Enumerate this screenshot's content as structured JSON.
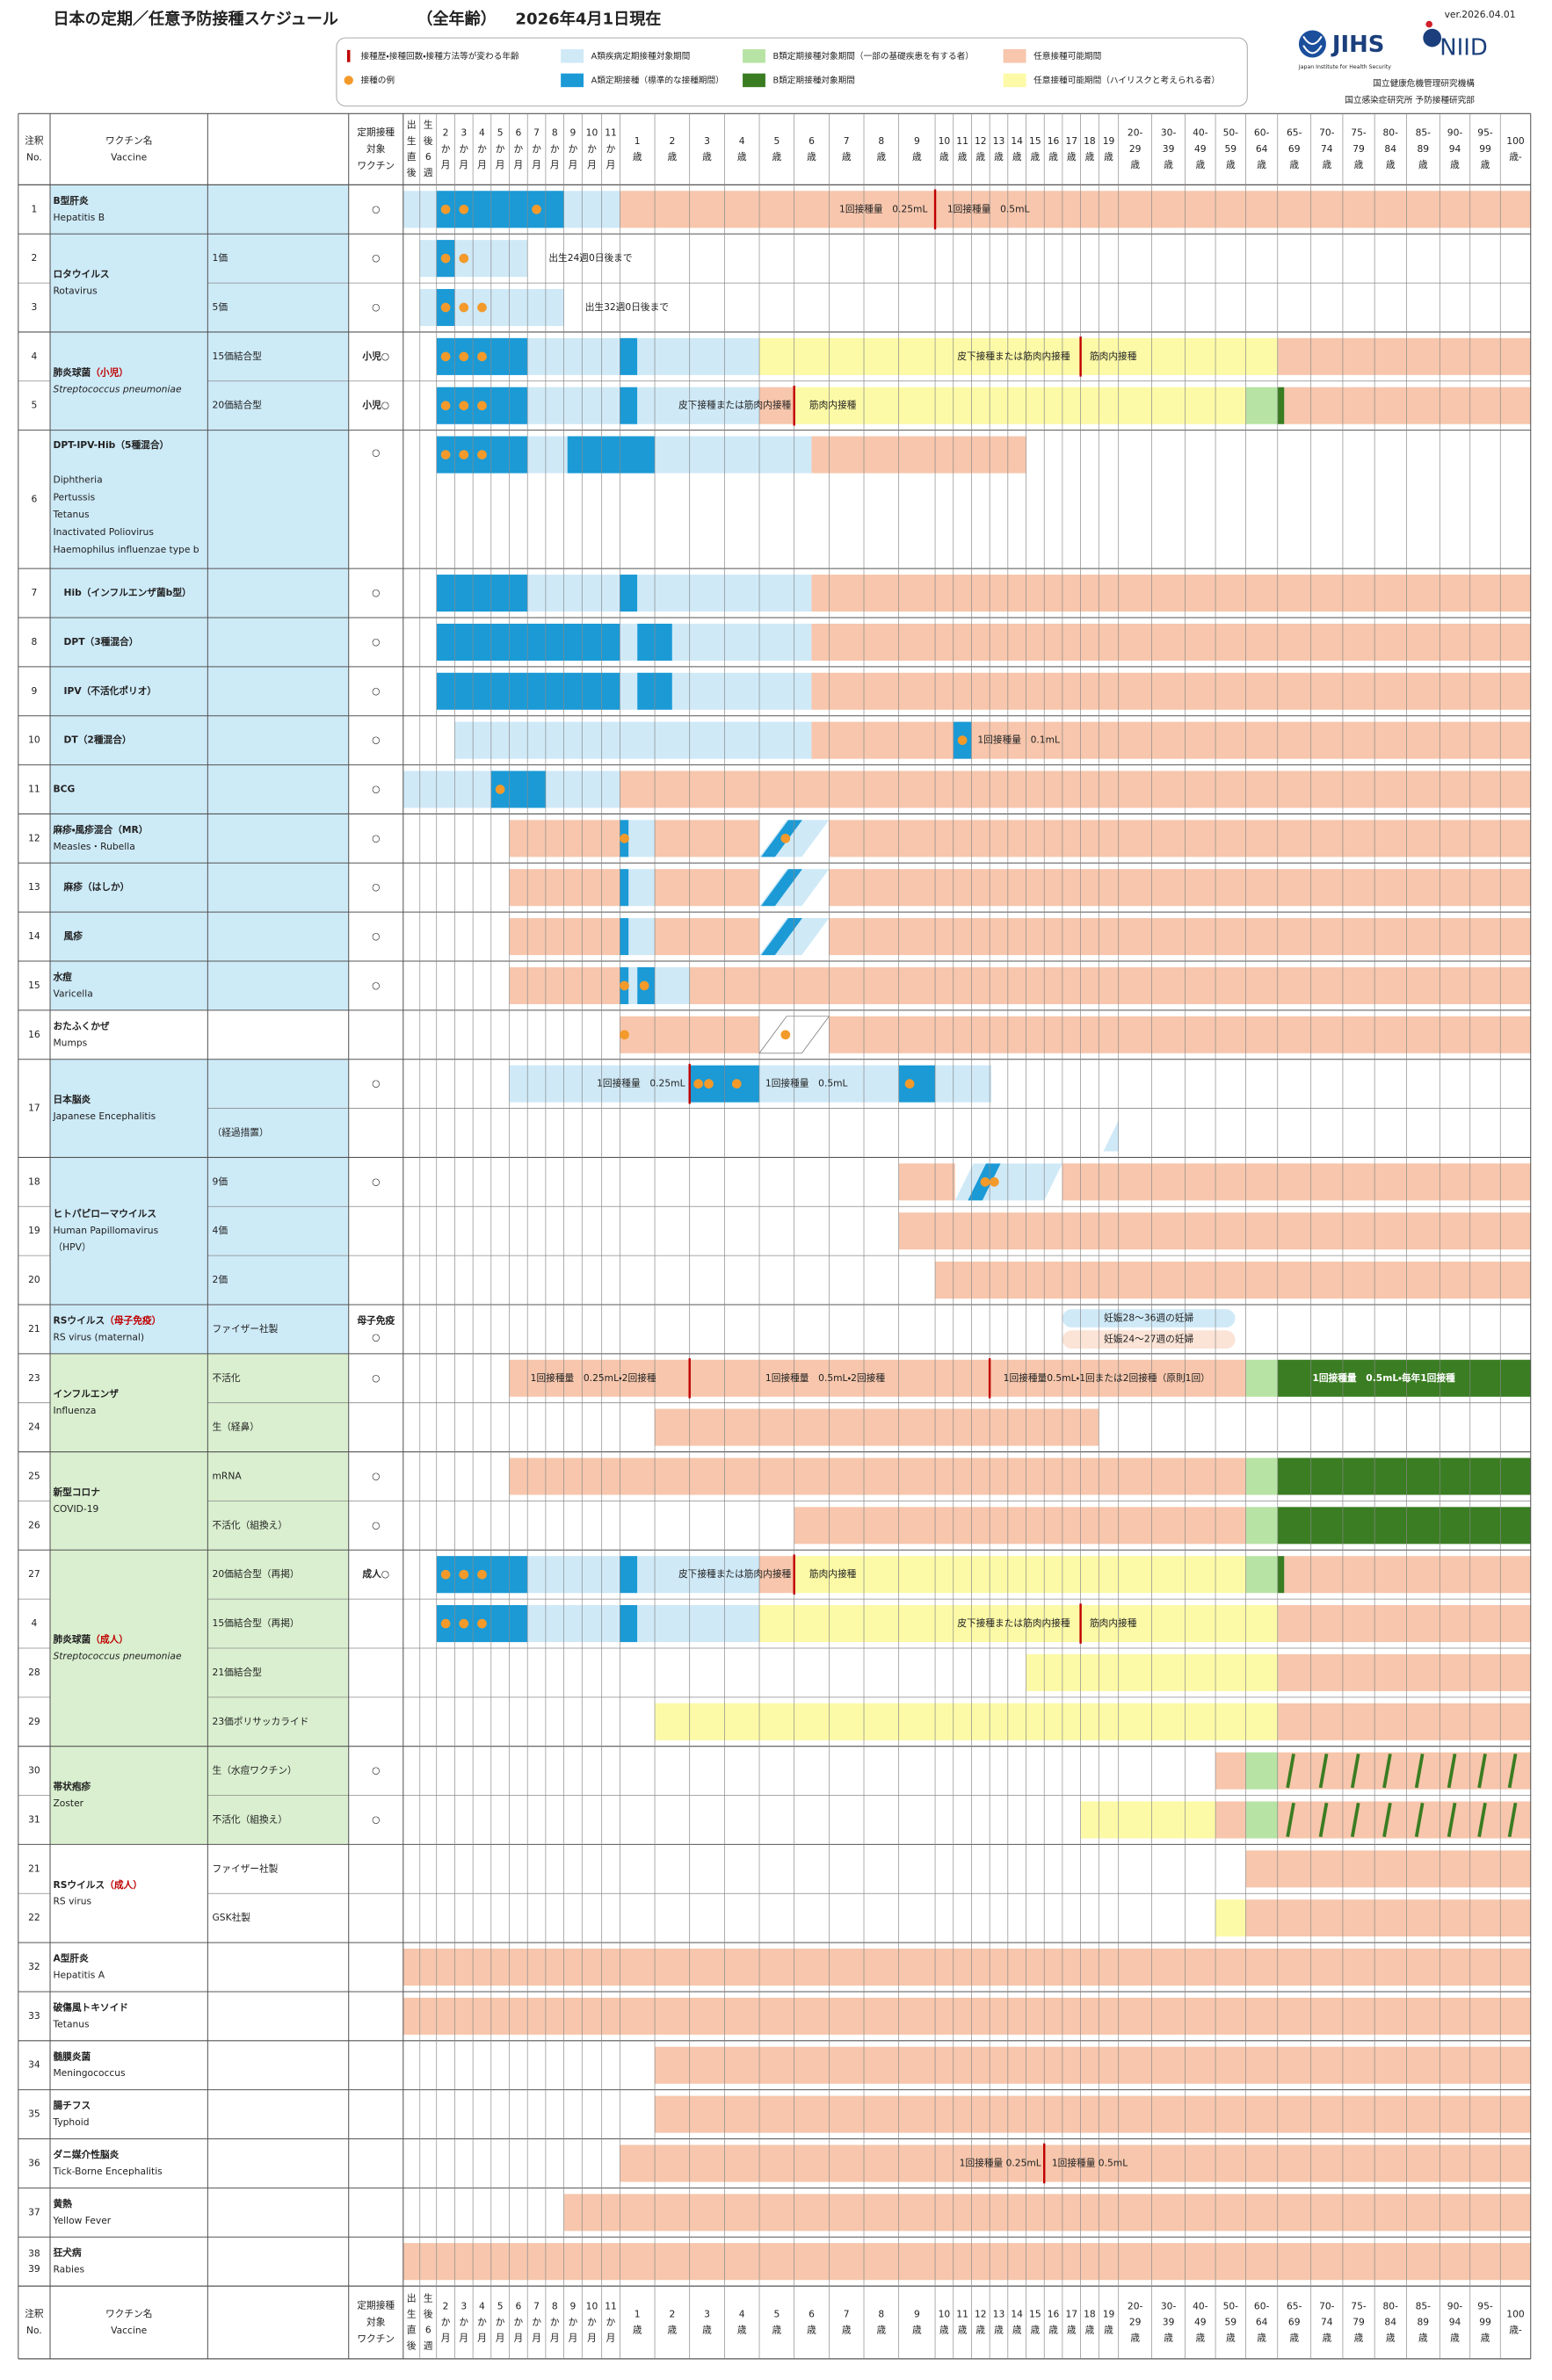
{
  "header": {
    "title": "日本の定期／任意予防接種スケジュール",
    "scope": "（全年齢）",
    "date": "2026年4月1日現在",
    "version": "ver.2026.04.01",
    "logo1": "JIHS",
    "logo1_sub": "Japan Institute for Health Security",
    "logo2": "NIID",
    "org_lines": [
      "国立健康危機管理研究機構",
      "国立感染症研究所 予防接種研究部"
    ]
  },
  "legend": [
    "接種歴・接種回数・接種方法等が変わる年齢",
    "接種の例",
    "A類疾病定期接種対象期間",
    "A類定期接種（標準的な接種期間）",
    "B類定期接種対象期間（一部の基礎疾患を有する者）",
    "B類定期接種対象期間",
    "任意接種可能期間",
    "任意接種可能期間（ハイリスクと考えられる者）"
  ],
  "table": {
    "headers": {
      "no": [
        "注釈",
        "No."
      ],
      "name": [
        "ワクチン名",
        "Vaccine"
      ],
      "target": [
        "定期接種",
        "対象",
        "ワクチン"
      ]
    },
    "columns": [
      [
        "出",
        "生",
        "直",
        "後"
      ],
      [
        "生",
        "後",
        "6",
        "週"
      ],
      [
        "2",
        "か",
        "月"
      ],
      [
        "3",
        "か",
        "月"
      ],
      [
        "4",
        "か",
        "月"
      ],
      [
        "5",
        "か",
        "月"
      ],
      [
        "6",
        "か",
        "月"
      ],
      [
        "7",
        "か",
        "月"
      ],
      [
        "8",
        "か",
        "月"
      ],
      [
        "9",
        "か",
        "月"
      ],
      [
        "10",
        "か",
        "月"
      ],
      [
        "11",
        "か",
        "月"
      ],
      [
        "1",
        "歳"
      ],
      [
        "2",
        "歳"
      ],
      [
        "3",
        "歳"
      ],
      [
        "4",
        "歳"
      ],
      [
        "5",
        "歳"
      ],
      [
        "6",
        "歳"
      ],
      [
        "7",
        "歳"
      ],
      [
        "8",
        "歳"
      ],
      [
        "9",
        "歳"
      ],
      [
        "10",
        "歳"
      ],
      [
        "11",
        "歳"
      ],
      [
        "12",
        "歳"
      ],
      [
        "13",
        "歳"
      ],
      [
        "14",
        "歳"
      ],
      [
        "15",
        "歳"
      ],
      [
        "16",
        "歳"
      ],
      [
        "17",
        "歳"
      ],
      [
        "18",
        "歳"
      ],
      [
        "19",
        "歳"
      ],
      [
        "20-",
        "29",
        "歳"
      ],
      [
        "30-",
        "39",
        "歳"
      ],
      [
        "40-",
        "49",
        "歳"
      ],
      [
        "50-",
        "59",
        "歳"
      ],
      [
        "60-",
        "64",
        "歳"
      ],
      [
        "65-",
        "69",
        "歳"
      ],
      [
        "70-",
        "74",
        "歳"
      ],
      [
        "75-",
        "79",
        "歳"
      ],
      [
        "80-",
        "84",
        "歳"
      ],
      [
        "85-",
        "89",
        "歳"
      ],
      [
        "90-",
        "94",
        "歳"
      ],
      [
        "95-",
        "99",
        "歳"
      ],
      [
        "100",
        "歳-"
      ]
    ],
    "groups": [
      {
        "name": "B型肝炎",
        "en": [
          "Hepatitis B"
        ],
        "rows": [
          {
            "no": "1",
            "target": "○",
            "notes": [
              "1回接種量　0.25mL",
              "1回接種量　0.5mL"
            ]
          }
        ]
      },
      {
        "name": "ロタウイルス",
        "en": [
          "Rotavirus"
        ],
        "rows": [
          {
            "no": "2",
            "sub": "1価",
            "target": "○",
            "notes": [
              "出生24週0日後まで"
            ]
          },
          {
            "no": "3",
            "sub": "5価",
            "target": "○",
            "notes": [
              "出生32週0日後まで"
            ]
          }
        ]
      },
      {
        "name": "肺炎球菌",
        "note": "（小児）",
        "en": [
          "Streptococcus pneumoniae"
        ],
        "rows": [
          {
            "no": "4",
            "sub": "15価結合型",
            "target": "小児○",
            "notes": [
              "皮下接種または筋肉内接種",
              "筋肉内接種"
            ]
          },
          {
            "no": "5",
            "sub": "20価結合型",
            "target": "小児○",
            "notes": [
              "皮下接種または筋肉内接種",
              "筋肉内接種"
            ]
          }
        ]
      },
      {
        "name": "DPT-IPV-Hib（5種混合）",
        "en": [
          "Diphtheria",
          "Pertussis",
          "Tetanus",
          "Inactivated Poliovirus",
          "Haemophilus influenzae type b"
        ],
        "rows": [
          {
            "no": "6",
            "target": "○"
          }
        ]
      },
      {
        "name": "Hib（インフルエンザ菌b型）",
        "rows": [
          {
            "no": "7",
            "target": "○"
          }
        ]
      },
      {
        "name": "DPT（3種混合）",
        "rows": [
          {
            "no": "8",
            "target": "○"
          }
        ]
      },
      {
        "name": "IPV（不活化ポリオ）",
        "rows": [
          {
            "no": "9",
            "target": "○"
          }
        ]
      },
      {
        "name": "DT（2種混合）",
        "rows": [
          {
            "no": "10",
            "target": "○",
            "notes": [
              "1回接種量　0.1mL"
            ]
          }
        ]
      },
      {
        "name": "BCG",
        "rows": [
          {
            "no": "11",
            "target": "○"
          }
        ]
      },
      {
        "name": "麻疹・風疹混合（MR）",
        "en": [
          "Measles・Rubella"
        ],
        "rows": [
          {
            "no": "12",
            "target": "○"
          }
        ]
      },
      {
        "name": "麻疹（はしか）",
        "rows": [
          {
            "no": "13",
            "target": "○"
          }
        ]
      },
      {
        "name": "風疹",
        "rows": [
          {
            "no": "14",
            "target": "○"
          }
        ]
      },
      {
        "name": "水痘",
        "en": [
          "Varicella"
        ],
        "rows": [
          {
            "no": "15",
            "target": "○"
          }
        ]
      },
      {
        "name": "おたふくかぜ",
        "en": [
          "Mumps"
        ],
        "rows": [
          {
            "no": "16"
          }
        ]
      },
      {
        "name": "日本脳炎",
        "en": [
          "Japanese Encephalitis"
        ],
        "rows": [
          {
            "no": "17",
            "target": "○",
            "notes": [
              "1回接種量　0.25mL",
              "1回接種量　0.5mL"
            ]
          },
          {
            "sub": "（経過措置）"
          }
        ]
      },
      {
        "name": "ヒトパピローマウイルス",
        "en": [
          "Human Papillomavirus",
          "（HPV）"
        ],
        "rows": [
          {
            "no": "18",
            "sub": "9価",
            "target": "○"
          },
          {
            "no": "19",
            "sub": "4価"
          },
          {
            "no": "20",
            "sub": "2価"
          }
        ]
      },
      {
        "name": "RSウイルス",
        "note": "（母子免疫）",
        "en": [
          "RS virus (maternal)"
        ],
        "rows": [
          {
            "no": "21",
            "sub": "ファイザー社製",
            "target": [
              "母子免疫",
              "○"
            ],
            "notes": [
              "妊娠28～36週の妊婦",
              "妊娠24～27週の妊婦"
            ]
          }
        ]
      },
      {
        "name": "インフルエンザ",
        "en": [
          "Influenza"
        ],
        "rows": [
          {
            "no": "23",
            "sub": "不活化",
            "target": "○",
            "notes": [
              "1回接種量　0.25mL・2回接種",
              "1回接種量　0.5mL・2回接種",
              "1回接種量0.5mL・1回または2回接種（原則1回）",
              "1回接種量　0.5mL・毎年1回接種"
            ]
          },
          {
            "no": "24",
            "sub": "生（経鼻）"
          }
        ]
      },
      {
        "name": "新型コロナ",
        "en": [
          "COVID-19"
        ],
        "rows": [
          {
            "no": "25",
            "sub": "mRNA",
            "target": "○"
          },
          {
            "no": "26",
            "sub": "不活化（組換え）",
            "target": "○"
          }
        ]
      },
      {
        "name": "肺炎球菌",
        "note": "（成人）",
        "en": [
          "Streptococcus pneumoniae"
        ],
        "rows": [
          {
            "no": "27",
            "sub": "20価結合型（再掲）",
            "target": "成人○",
            "notes": [
              "皮下接種または筋肉内接種",
              "筋肉内接種"
            ]
          },
          {
            "no": "4",
            "sub": "15価結合型（再掲）",
            "notes": [
              "皮下接種または筋肉内接種",
              "筋肉内接種"
            ]
          },
          {
            "no": "28",
            "sub": "21価結合型"
          },
          {
            "no": "29",
            "sub": "23価ポリサッカライド"
          }
        ]
      },
      {
        "name": "帯状疱疹",
        "en": [
          "Zoster"
        ],
        "rows": [
          {
            "no": "30",
            "sub": "生（水痘ワクチン）",
            "target": "○"
          },
          {
            "no": "31",
            "sub": "不活化（組換え）",
            "target": "○"
          }
        ]
      },
      {
        "name": "RSウイルス",
        "note": "（成人）",
        "en": [
          "RS virus"
        ],
        "rows": [
          {
            "no": "21",
            "sub": "ファイザー社製"
          },
          {
            "no": "22",
            "sub": "GSK社製"
          }
        ]
      },
      {
        "name": "A型肝炎",
        "en": [
          "Hepatitis A"
        ],
        "rows": [
          {
            "no": "32"
          }
        ]
      },
      {
        "name": "破傷風トキソイド",
        "en": [
          "Tetanus"
        ],
        "rows": [
          {
            "no": "33"
          }
        ]
      },
      {
        "name": "髄膜炎菌",
        "en": [
          "Meningococcus"
        ],
        "rows": [
          {
            "no": "34"
          }
        ]
      },
      {
        "name": "腸チフス",
        "en": [
          "Typhoid"
        ],
        "rows": [
          {
            "no": "35"
          }
        ]
      },
      {
        "name": "ダニ媒介性脳炎",
        "en": [
          "Tick-Borne Encephalitis"
        ],
        "rows": [
          {
            "no": "36",
            "notes": [
              "1回接種量 0.25mL",
              "1回接種量 0.5mL"
            ]
          }
        ]
      },
      {
        "name": "黄熱",
        "en": [
          "Yellow Fever"
        ],
        "rows": [
          {
            "no": "37"
          }
        ]
      },
      {
        "name": "狂犬病",
        "en": [
          "Rabies"
        ],
        "rows": [
          {
            "no": [
              "38",
              "39"
            ]
          }
        ]
      }
    ]
  }
}
